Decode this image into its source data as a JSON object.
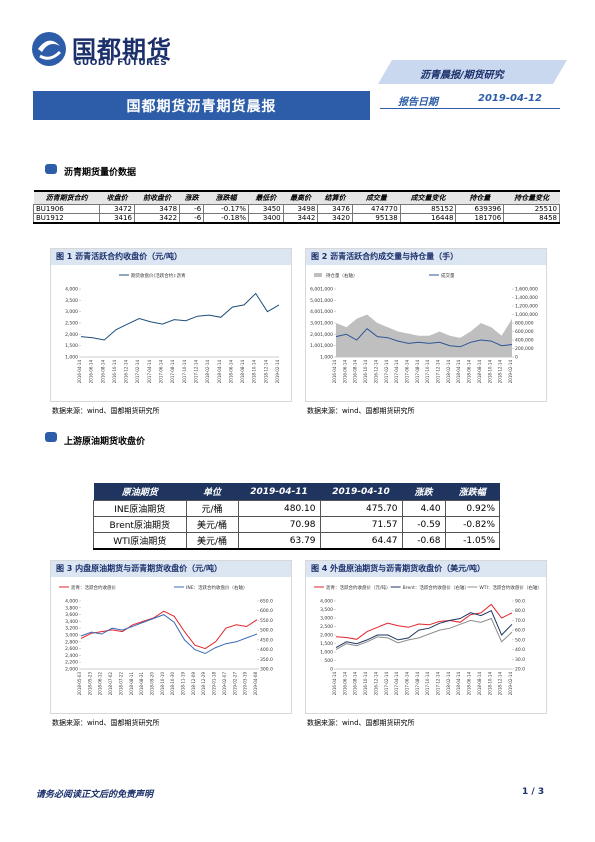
{
  "header": {
    "logo_cn": "国都期货",
    "logo_en": "GUODU FUTURES",
    "category": "沥青晨报/期货研究",
    "title": "国都期货沥青期货晨报",
    "date_label": "报告日期",
    "date": "2019-04-12"
  },
  "section1": {
    "heading": "沥青期货量价数据",
    "table": {
      "columns": [
        "沥青期货合约",
        "收盘价",
        "前收盘价",
        "涨跌",
        "涨跌幅",
        "最低价",
        "最高价",
        "结算价",
        "成交量",
        "成交量变化",
        "持仓量",
        "持仓量变化"
      ],
      "rows": [
        [
          "BU1906",
          "3472",
          "3478",
          "-6",
          "-0.17%",
          "3450",
          "3498",
          "3476",
          "474770",
          "85152",
          "639396",
          "25510"
        ],
        [
          "BU1912",
          "3416",
          "3422",
          "-6",
          "-0.18%",
          "3400",
          "3442",
          "3420",
          "95138",
          "16448",
          "181706",
          "8458"
        ]
      ]
    }
  },
  "section2": {
    "heading": "上游原油期货收盘价",
    "table": {
      "columns": [
        "原油期货",
        "单位",
        "2019-04-11",
        "2019-04-10",
        "涨跌",
        "涨跌幅"
      ],
      "rows": [
        [
          "INE原油期货",
          "元/桶",
          "480.10",
          "475.70",
          "4.40",
          "0.92%"
        ],
        [
          "Brent原油期货",
          "美元/桶",
          "70.98",
          "71.57",
          "-0.59",
          "-0.82%"
        ],
        [
          "WTI原油期货",
          "美元/桶",
          "63.79",
          "64.47",
          "-0.68",
          "-1.05%"
        ]
      ]
    }
  },
  "chart_data": [
    {
      "type": "line",
      "title": "图 1 沥青活跃合约收盘价（元/吨）",
      "source": "数据来源：wind、国都期货研究所",
      "categories": [
        "2016-04-14",
        "2016-06-14",
        "2016-08-14",
        "2016-10-14",
        "2016-12-14",
        "2017-02-14",
        "2017-04-14",
        "2017-06-14",
        "2017-08-14",
        "2017-10-14",
        "2017-12-14",
        "2018-02-14",
        "2018-04-14",
        "2018-06-14",
        "2018-08-14",
        "2018-10-14",
        "2018-12-14",
        "2019-02-14"
      ],
      "series": [
        {
          "name": "期货收盘价(活跃合约):沥青",
          "color": "#1f4e79",
          "values": [
            1900,
            1850,
            1750,
            2200,
            2450,
            2700,
            2550,
            2450,
            2650,
            2600,
            2800,
            2850,
            2750,
            3200,
            3300,
            3800,
            3000,
            3300
          ]
        }
      ],
      "ylim": [
        1000,
        4000
      ],
      "yticks": [
        {
          "value": 1000,
          "label": "1,000"
        },
        {
          "value": 1500,
          "label": "1,500"
        },
        {
          "value": 2000,
          "label": "2,000"
        },
        {
          "value": 2500,
          "label": "2,500"
        },
        {
          "value": 3000,
          "label": "3,000"
        },
        {
          "value": 3500,
          "label": "3,500"
        },
        {
          "value": 4000,
          "label": "4,000"
        }
      ]
    },
    {
      "type": "line",
      "title": "图 2 沥青活跃合约成交量与持仓量（手）",
      "source": "数据来源：wind、国都期货研究所",
      "categories": [
        "2016-04-14",
        "2016-06-14",
        "2016-08-14",
        "2016-10-14",
        "2016-12-14",
        "2017-02-14",
        "2017-04-14",
        "2017-06-14",
        "2017-08-14",
        "2017-10-14",
        "2017-12-14",
        "2018-02-14",
        "2018-04-14",
        "2018-06-14",
        "2018-08-14",
        "2018-10-14",
        "2018-12-14",
        "2019-02-14"
      ],
      "series": [
        {
          "name": "持仓量（右轴）",
          "color": "#bfbfbf",
          "kind": "area",
          "axis": "y2",
          "values": [
            800000,
            700000,
            900000,
            1000000,
            800000,
            700000,
            600000,
            550000,
            500000,
            500000,
            600000,
            500000,
            450000,
            600000,
            800000,
            700000,
            500000,
            900000
          ]
        },
        {
          "name": "成交量",
          "color": "#2e5597",
          "values": [
            1800000,
            2000000,
            1500000,
            2500000,
            1800000,
            1700000,
            1400000,
            1200000,
            1300000,
            1200000,
            1300000,
            1000000,
            900000,
            1300000,
            1500000,
            1400000,
            1000000,
            1100000
          ]
        }
      ],
      "ylim": [
        1000,
        6001000
      ],
      "yticks": [
        {
          "value": 1000,
          "label": "1,000"
        },
        {
          "value": 1001000,
          "label": "1,001,000"
        },
        {
          "value": 2001000,
          "label": "2,001,000"
        },
        {
          "value": 3001000,
          "label": "3,001,000"
        },
        {
          "value": 4001000,
          "label": "4,001,000"
        },
        {
          "value": 5001000,
          "label": "5,001,000"
        },
        {
          "value": 6001000,
          "label": "6,001,000"
        }
      ],
      "y2lim": [
        0,
        1600000
      ],
      "y2ticks": [
        0,
        {
          "value": 200000,
          "label": "200,000"
        },
        {
          "value": 400000,
          "label": "400,000"
        },
        {
          "value": 600000,
          "label": "600,000"
        },
        {
          "value": 800000,
          "label": "800,000"
        },
        {
          "value": 1000000,
          "label": "1,000,000"
        },
        {
          "value": 1200000,
          "label": "1,200,000"
        },
        {
          "value": 1400000,
          "label": "1,400,000"
        },
        {
          "value": 1600000,
          "label": "1,600,000"
        }
      ]
    },
    {
      "type": "line",
      "title": "图 3 内盘原油期货与沥青期货收盘价（元/吨）",
      "source": "数据来源：wind、国都期货研究所",
      "categories": [
        "2018-05-03",
        "2018-05-23",
        "2018-06-12",
        "2018-07-02",
        "2018-07-22",
        "2018-08-11",
        "2018-08-31",
        "2018-09-20",
        "2018-10-10",
        "2018-10-30",
        "2018-11-19",
        "2018-12-09",
        "2018-12-29",
        "2019-01-18",
        "2019-02-07",
        "2019-02-27",
        "2019-03-19",
        "2019-04-08"
      ],
      "series": [
        {
          "name": "沥青：活跃合约收盘价",
          "color": "#e0262b",
          "values": [
            2900,
            3050,
            3100,
            3150,
            3100,
            3300,
            3400,
            3500,
            3700,
            3550,
            3100,
            2700,
            2600,
            2800,
            3200,
            3300,
            3250,
            3450
          ]
        },
        {
          "name": "INE：活跃合约收盘价（右轴）",
          "color": "#3a6bb5",
          "axis": "y2",
          "values": [
            470,
            490,
            480,
            510,
            500,
            520,
            540,
            560,
            580,
            540,
            450,
            400,
            380,
            410,
            430,
            440,
            460,
            480
          ]
        }
      ],
      "ylim": [
        2000,
        4000
      ],
      "yticks": [
        {
          "value": 2000,
          "label": "2,000"
        },
        {
          "value": 2200,
          "label": "2,200"
        },
        {
          "value": 2400,
          "label": "2,400"
        },
        {
          "value": 2600,
          "label": "2,600"
        },
        {
          "value": 2800,
          "label": "2,800"
        },
        {
          "value": 3000,
          "label": "3,000"
        },
        {
          "value": 3200,
          "label": "3,200"
        },
        {
          "value": 3400,
          "label": "3,400"
        },
        {
          "value": 3600,
          "label": "3,600"
        },
        {
          "value": 3800,
          "label": "3,800"
        },
        {
          "value": 4000,
          "label": "4,000"
        }
      ],
      "y2lim": [
        300,
        650
      ],
      "y2ticks": [
        {
          "value": 300,
          "label": "300.0"
        },
        {
          "value": 350,
          "label": "350.0"
        },
        {
          "value": 400,
          "label": "400.0"
        },
        {
          "value": 450,
          "label": "450.0"
        },
        {
          "value": 500,
          "label": "500.0"
        },
        {
          "value": 550,
          "label": "550.0"
        },
        {
          "value": 600,
          "label": "600.0"
        },
        {
          "value": 650,
          "label": "650.0"
        }
      ]
    },
    {
      "type": "line",
      "title": "图 4 外盘原油期货与沥青期货收盘价（美元/吨）",
      "source": "数据来源：wind、国都期货研究所",
      "categories": [
        "2016-04-14",
        "2016-06-14",
        "2016-08-14",
        "2016-10-14",
        "2016-12-14",
        "2017-02-14",
        "2017-04-14",
        "2017-06-14",
        "2017-08-14",
        "2017-10-14",
        "2017-12-14",
        "2018-02-14",
        "2018-04-14",
        "2018-06-14",
        "2018-08-14",
        "2018-10-14",
        "2018-12-14",
        "2019-02-14"
      ],
      "series": [
        {
          "name": "沥青：活跃合约收盘价（元/吨）",
          "color": "#e0262b",
          "values": [
            1900,
            1850,
            1750,
            2200,
            2450,
            2700,
            2550,
            2450,
            2650,
            2600,
            2800,
            2850,
            2750,
            3200,
            3300,
            3800,
            3000,
            3300
          ]
        },
        {
          "name": "Brent：活跃合约收盘价（右轴）",
          "color": "#1f3560",
          "axis": "y2",
          "values": [
            42,
            48,
            46,
            50,
            55,
            55,
            50,
            52,
            60,
            62,
            67,
            70,
            72,
            78,
            75,
            80,
            55,
            66
          ]
        },
        {
          "name": "WTI：活跃合约收盘价（右轴）",
          "color": "#8c8c8c",
          "axis": "y2",
          "values": [
            40,
            46,
            44,
            48,
            53,
            52,
            47,
            50,
            52,
            56,
            60,
            62,
            66,
            70,
            68,
            72,
            48,
            58
          ]
        }
      ],
      "ylim": [
        0,
        4000
      ],
      "yticks": [
        0,
        500,
        {
          "value": 1000,
          "label": "1,000"
        },
        {
          "value": 1500,
          "label": "1,500"
        },
        {
          "value": 2000,
          "label": "2,000"
        },
        {
          "value": 2500,
          "label": "2,500"
        },
        {
          "value": 3000,
          "label": "3,000"
        },
        {
          "value": 3500,
          "label": "3,500"
        },
        {
          "value": 4000,
          "label": "4,000"
        }
      ],
      "y2lim": [
        20,
        90
      ],
      "y2ticks": [
        {
          "value": 20,
          "label": "20.0"
        },
        {
          "value": 30,
          "label": "30.0"
        },
        {
          "value": 40,
          "label": "40.0"
        },
        {
          "value": 50,
          "label": "50.0"
        },
        {
          "value": 60,
          "label": "60.0"
        },
        {
          "value": 70,
          "label": "70.0"
        },
        {
          "value": 80,
          "label": "80.0"
        },
        {
          "value": 90,
          "label": "90.0"
        }
      ]
    }
  ],
  "footer": {
    "disclaimer": "请务必阅读正文后的免责声明",
    "page": "1 / 3"
  }
}
